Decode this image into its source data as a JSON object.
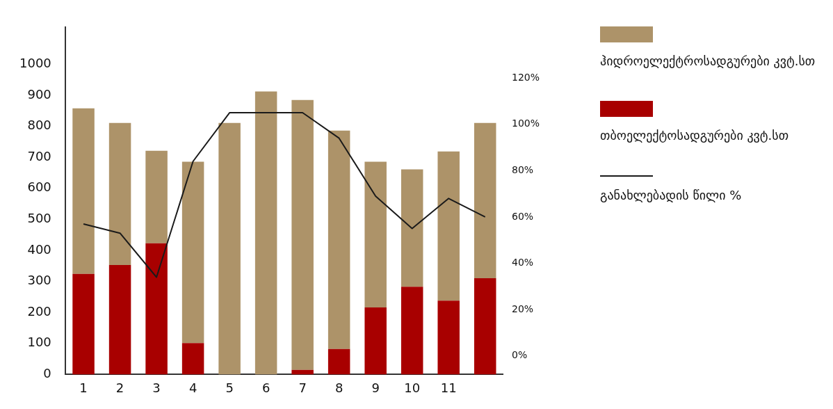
{
  "chart_data": {
    "type": "bar",
    "stacked": true,
    "categories": [
      "1",
      "2",
      "3",
      "4",
      "5",
      "6",
      "7",
      "8",
      "9",
      "10",
      "11",
      null
    ],
    "series": [
      {
        "name": "თბოელექტოსადგურები კვტ.სთ",
        "color": "#a80000",
        "values": [
          324,
          353,
          423,
          101,
          0,
          0,
          15,
          82,
          216,
          283,
          238,
          310
        ]
      },
      {
        "name": "ჰიდროელექტროსადგურები კვტ.სთ",
        "color": "#ad9369",
        "values": [
          534,
          458,
          298,
          585,
          811,
          912,
          870,
          704,
          470,
          378,
          481,
          501
        ]
      },
      {
        "name": "განახლებადის წილი %",
        "type": "line",
        "axis": "y2",
        "color": "#1a1a1a",
        "values": [
          57,
          53,
          34,
          84,
          105,
          105,
          105,
          94,
          69,
          55,
          68,
          60
        ]
      }
    ],
    "ylim": [
      0,
      1120
    ],
    "yticks": [
      0,
      100,
      200,
      300,
      400,
      500,
      600,
      700,
      800,
      900,
      1000
    ],
    "y2lim": [
      -8,
      142
    ],
    "y2ticks": [
      {
        "value": 0,
        "label": "0%"
      },
      {
        "value": 20,
        "label": "20%"
      },
      {
        "value": 40,
        "label": "40%"
      },
      {
        "value": 60,
        "label": "60%"
      },
      {
        "value": 80,
        "label": "80%"
      },
      {
        "value": 100,
        "label": "100%"
      },
      {
        "value": 120,
        "label": "120%"
      }
    ],
    "grid": false,
    "legend": "right",
    "marker": "none",
    "line_style": "solid"
  }
}
